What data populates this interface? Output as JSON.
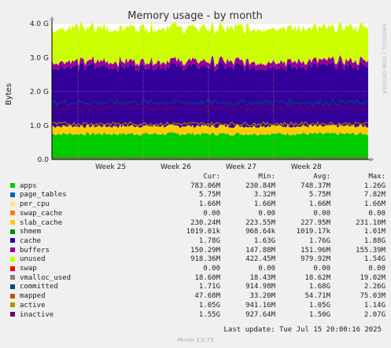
{
  "chart_data": {
    "type": "area",
    "title": "Memory usage - by month",
    "ylabel": "Bytes",
    "side_label": "RRDTOOL / TOBI OETIKER",
    "ylim": [
      0,
      4000000000
    ],
    "y_ticks": [
      {
        "value": 0,
        "label": "0.0"
      },
      {
        "value": 1000000000,
        "label": "1.0 G"
      },
      {
        "value": 2000000000,
        "label": "2.0 G"
      },
      {
        "value": 3000000000,
        "label": "3.0 G"
      },
      {
        "value": 4000000000,
        "label": "4.0 G"
      }
    ],
    "x_ticks": [
      "Week 25",
      "Week 26",
      "Week 27",
      "Week 28"
    ],
    "stack_order": [
      "apps",
      "page_tables",
      "per_cpu",
      "swap_cache",
      "slab_cache",
      "shmem",
      "cache",
      "buffers",
      "unused"
    ],
    "lines": [
      "swap",
      "vmalloc_used",
      "committed",
      "mapped",
      "active",
      "inactive"
    ],
    "columns": [
      "Cur:",
      "Min:",
      "Avg:",
      "Max:"
    ],
    "series": [
      {
        "name": "apps",
        "color": "#00cc00",
        "cur": "783.06M",
        "min": "230.84M",
        "avg": "748.37M",
        "max": "1.26G",
        "avg_bytes": 748370000
      },
      {
        "name": "page_tables",
        "color": "#0066b3",
        "cur": "5.75M",
        "min": "3.32M",
        "avg": "5.75M",
        "max": "7.82M",
        "avg_bytes": 5750000
      },
      {
        "name": "per_cpu",
        "color": "#ffe680",
        "cur": "1.66M",
        "min": "1.66M",
        "avg": "1.66M",
        "max": "1.66M",
        "avg_bytes": 1660000
      },
      {
        "name": "swap_cache",
        "color": "#ff8000",
        "cur": "0.00",
        "min": "0.00",
        "avg": "0.00",
        "max": "0.00",
        "avg_bytes": 0
      },
      {
        "name": "slab_cache",
        "color": "#ffcc00",
        "cur": "230.24M",
        "min": "223.55M",
        "avg": "227.95M",
        "max": "231.10M",
        "avg_bytes": 227950000
      },
      {
        "name": "shmem",
        "color": "#008f00",
        "cur": "1019.01k",
        "min": "968.64k",
        "avg": "1019.17k",
        "max": "1.01M",
        "avg_bytes": 1019170
      },
      {
        "name": "cache",
        "color": "#330099",
        "cur": "1.78G",
        "min": "1.63G",
        "avg": "1.76G",
        "max": "1.88G",
        "avg_bytes": 1760000000
      },
      {
        "name": "buffers",
        "color": "#990099",
        "cur": "150.29M",
        "min": "147.88M",
        "avg": "151.96M",
        "max": "155.39M",
        "avg_bytes": 151960000
      },
      {
        "name": "unused",
        "color": "#ccff00",
        "cur": "918.36M",
        "min": "422.45M",
        "avg": "979.92M",
        "max": "1.54G",
        "avg_bytes": 979920000
      },
      {
        "name": "swap",
        "color": "#ff0000",
        "cur": "0.00",
        "min": "0.00",
        "avg": "0.00",
        "max": "0.00",
        "avg_bytes": 0
      },
      {
        "name": "vmalloc_used",
        "color": "#808080",
        "cur": "18.60M",
        "min": "18.43M",
        "avg": "18.62M",
        "max": "19.02M",
        "avg_bytes": 18620000
      },
      {
        "name": "committed",
        "color": "#00487d",
        "cur": "1.71G",
        "min": "914.98M",
        "avg": "1.68G",
        "max": "2.26G",
        "avg_bytes": 1680000000
      },
      {
        "name": "mapped",
        "color": "#b35a00",
        "cur": "47.68M",
        "min": "33.20M",
        "avg": "54.71M",
        "max": "75.03M",
        "avg_bytes": 54710000
      },
      {
        "name": "active",
        "color": "#b38f00",
        "cur": "1.05G",
        "min": "941.16M",
        "avg": "1.05G",
        "max": "1.14G",
        "avg_bytes": 1050000000
      },
      {
        "name": "inactive",
        "color": "#6b006b",
        "cur": "1.55G",
        "min": "927.64M",
        "avg": "1.50G",
        "max": "2.07G",
        "avg_bytes": 1500000000
      }
    ]
  },
  "footer": {
    "last_update": "Last update: Tue Jul 15 20:00:16 2025",
    "munin_version": "Munin 2.0.73"
  }
}
